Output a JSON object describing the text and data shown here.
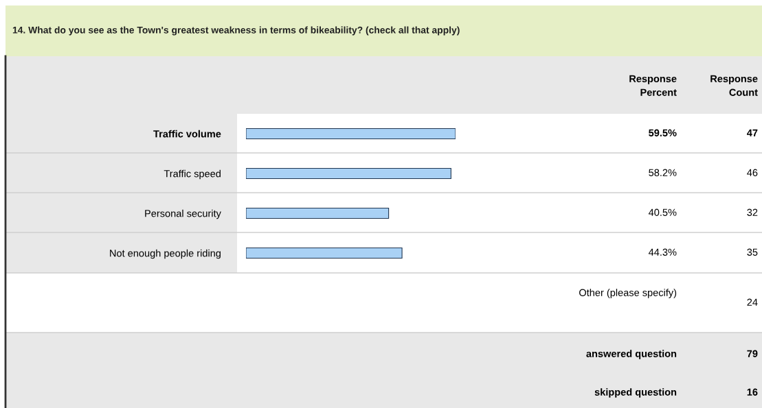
{
  "chart_data": {
    "type": "bar",
    "orientation": "horizontal",
    "title": "14. What do you see as the Town's greatest weakness in terms of bikeability? (check all that apply)",
    "categories": [
      "Traffic volume",
      "Traffic speed",
      "Personal security",
      "Not enough people riding"
    ],
    "values": [
      59.5,
      58.2,
      40.5,
      44.3
    ],
    "value_labels": [
      "59.5%",
      "58.2%",
      "40.5%",
      "44.3%"
    ],
    "color": "#a9d1f5",
    "tick_labels": "y",
    "grid": false,
    "legend": false,
    "annotations": [
      "Response\nPercent",
      "Response\nCount",
      "47",
      "46",
      "32",
      "35",
      "Other (please specify)",
      "24",
      "answered question",
      "79",
      "skipped question",
      "16"
    ]
  }
}
